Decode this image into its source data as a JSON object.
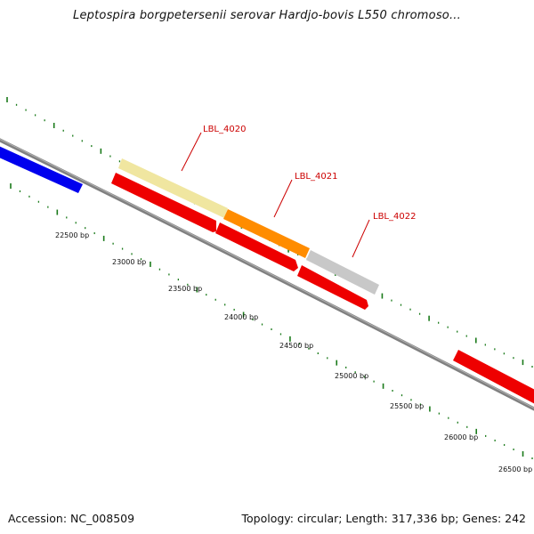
{
  "header": {
    "title": "Leptospira borgpetersenii serovar Hardjo-bovis L550 chromoso..."
  },
  "map": {
    "tick_labels": [
      "22500 bp",
      "23000 bp",
      "23500 bp",
      "24000 bp",
      "24500 bp",
      "25000 bp",
      "25500 bp",
      "26000 bp",
      "26500 bp"
    ],
    "gene_labels": [
      "LBL_4020",
      "LBL_4021",
      "LBL_4022"
    ],
    "colors": {
      "backbone": "#808080",
      "forward_tick": "#1a7a1a",
      "label_red": "#cc0000",
      "blue_feature": "#0000ee",
      "red_feature": "#ee0000",
      "yellow_feature": "#f0e6a0",
      "orange_feature": "#ff8c00",
      "gray_feature": "#c8c8c8"
    }
  },
  "footer": {
    "accession": "Accession: NC_008509",
    "stats": "Topology: circular; Length: 317,336 bp; Genes: 242"
  }
}
